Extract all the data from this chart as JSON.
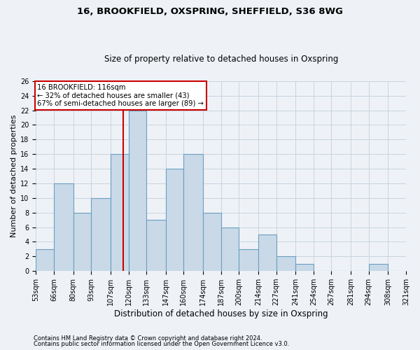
{
  "title1": "16, BROOKFIELD, OXSPRING, SHEFFIELD, S36 8WG",
  "title2": "Size of property relative to detached houses in Oxspring",
  "xlabel": "Distribution of detached houses by size in Oxspring",
  "ylabel": "Number of detached properties",
  "bin_edges": [
    53,
    66,
    80,
    93,
    107,
    120,
    133,
    147,
    160,
    174,
    187,
    200,
    214,
    227,
    241,
    254,
    267,
    281,
    294,
    308,
    321
  ],
  "bar_heights": [
    3,
    12,
    8,
    10,
    16,
    22,
    7,
    14,
    16,
    8,
    6,
    3,
    5,
    2,
    1,
    0,
    0,
    0,
    1,
    0
  ],
  "bar_color": "#c9d9e8",
  "bar_edge_color": "#6a9fc0",
  "property_size": 116,
  "annotation_title": "16 BROOKFIELD: 116sqm",
  "annotation_line1": "← 32% of detached houses are smaller (43)",
  "annotation_line2": "67% of semi-detached houses are larger (89) →",
  "vline_color": "#cc0000",
  "annotation_box_color": "#cc0000",
  "ylim": [
    0,
    26
  ],
  "yticks": [
    0,
    2,
    4,
    6,
    8,
    10,
    12,
    14,
    16,
    18,
    20,
    22,
    24,
    26
  ],
  "grid_color": "#c8d4de",
  "footer1": "Contains HM Land Registry data © Crown copyright and database right 2024.",
  "footer2": "Contains public sector information licensed under the Open Government Licence v3.0.",
  "bg_color": "#eef2f7",
  "title1_fontsize": 9.5,
  "title2_fontsize": 8.5,
  "ylabel_fontsize": 8,
  "xlabel_fontsize": 8.5,
  "tick_fontsize": 7,
  "footer_fontsize": 6
}
